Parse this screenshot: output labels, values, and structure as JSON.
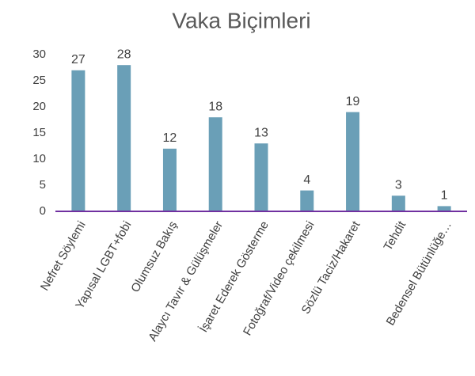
{
  "chart_data": {
    "type": "bar",
    "title": "Vaka Biçimleri",
    "categories": [
      "Nefret Söylemi",
      "Yapısal LGBT+fobi",
      "Olumsuz Bakış",
      "Alaycı Tavır & Gülüşmeler",
      "İşaret Ederek Gösterme",
      "Fotoğraf/Video çekilmesi",
      "Sözlü Taciz/Hakaret",
      "Tehdit",
      "Bedensel Bütünlüğe…"
    ],
    "values": [
      27,
      28,
      12,
      18,
      13,
      4,
      19,
      3,
      1
    ],
    "color": "#6a9fb7",
    "axis_color": "#7030a0",
    "ylim": [
      0,
      30
    ],
    "yticks": [
      0,
      5,
      10,
      15,
      20,
      25,
      30
    ],
    "grid": false
  }
}
